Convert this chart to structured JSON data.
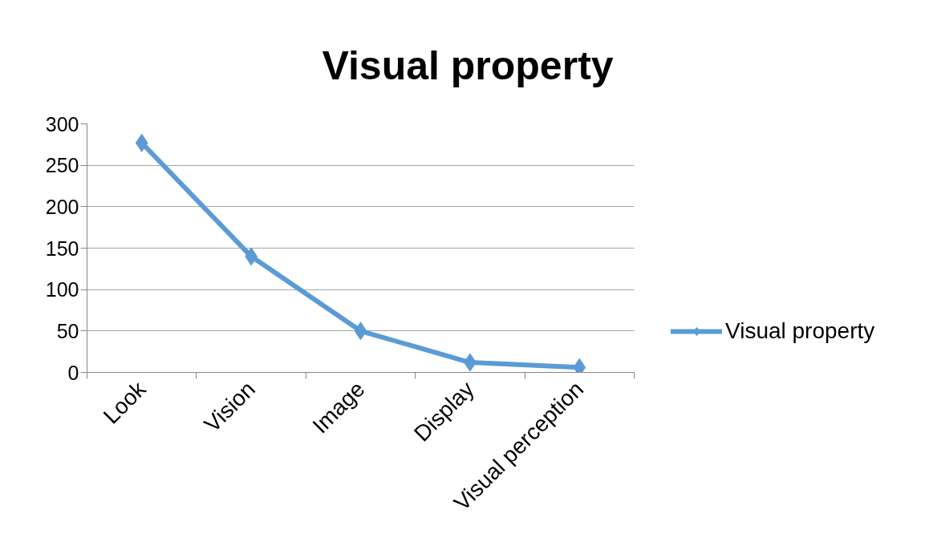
{
  "chart_data": {
    "type": "line",
    "title": "Visual property",
    "categories": [
      "Look",
      "Vision",
      "Image",
      "Display",
      "Visual perception"
    ],
    "series": [
      {
        "name": "Visual property",
        "color": "#5b9bd5",
        "values": [
          277,
          140,
          50,
          12,
          6
        ]
      }
    ],
    "ylim": [
      0,
      300
    ],
    "yticks": [
      0,
      50,
      100,
      150,
      200,
      250,
      300
    ],
    "grid": "y",
    "legend": "right",
    "marker": "diamond",
    "line_style": "solid"
  }
}
